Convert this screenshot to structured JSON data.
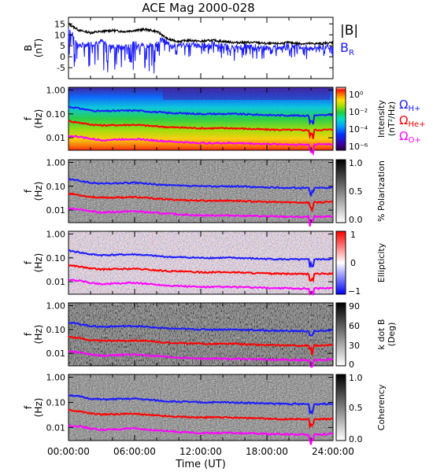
{
  "chart_data": {
    "title": "ACE Mag 2000-028",
    "xlabel": "Time (UT)",
    "x_ticks": [
      "00:00:00",
      "06:00:00",
      "12:00:00",
      "18:00:00",
      "24:00:00"
    ],
    "xlim_hours": [
      0,
      24
    ],
    "panels": [
      {
        "type": "line",
        "ylabel": "B",
        "yunits": "(nT)",
        "ylim": [
          -10,
          18
        ],
        "yticks": [
          "-5",
          "0",
          "5",
          "10",
          "15"
        ],
        "ytick_values": [
          -5,
          0,
          5,
          10,
          15
        ],
        "legend": [
          {
            "label": "|B|",
            "color": "#000000"
          },
          {
            "label": "B",
            "sub": "R",
            "color": "#1a1aff"
          }
        ],
        "series": [
          {
            "name": "|B|",
            "color": "#000000",
            "x": [
              0,
              0.5,
              1,
              2,
              3,
              4,
              5,
              6,
              7,
              8,
              8.5,
              9,
              10,
              11,
              12,
              13,
              14,
              15,
              16,
              17,
              18,
              19,
              20,
              21,
              22,
              23,
              24
            ],
            "y": [
              15,
              13.5,
              12,
              11,
              11.5,
              12,
              11.5,
              12,
              12.5,
              11.5,
              10,
              8,
              7,
              7.5,
              7,
              7.5,
              7,
              6.5,
              6.5,
              6.5,
              6,
              6,
              6.5,
              6,
              6,
              6,
              6.5
            ]
          },
          {
            "name": "B_R",
            "color": "#1a1aff",
            "x": [
              0,
              0.5,
              1,
              2,
              3,
              4,
              5,
              6,
              7,
              8,
              8.5,
              9,
              10,
              11,
              12,
              13,
              14,
              15,
              16,
              17,
              18,
              19,
              20,
              21,
              22,
              23,
              24
            ],
            "y": [
              13,
              9,
              5,
              6,
              7,
              5,
              4,
              6,
              5,
              6,
              8,
              6,
              5,
              6,
              5,
              6,
              5,
              4,
              5,
              4.5,
              4,
              4.5,
              5,
              4.5,
              4,
              4.5,
              5
            ]
          }
        ]
      },
      {
        "type": "heatmap",
        "ylabel": "f",
        "yunits": "(Hz)",
        "yticks": [
          "1.00",
          "0.10",
          "0.01"
        ],
        "colorbar": {
          "label": "Intensity",
          "units": "(nT²/Hz)",
          "scale": "log",
          "range": [
            1e-06,
            1
          ],
          "ticks": [
            "10⁰",
            "10⁻²",
            "10⁻⁴",
            "10⁻⁶"
          ],
          "colors": [
            "#2b0040",
            "#3d00a0",
            "#0030ff",
            "#00a0ff",
            "#00e0c0",
            "#20d040",
            "#a0e000",
            "#ffe000",
            "#ff8000",
            "#ff1000",
            "#ffe8e8"
          ]
        },
        "legend": [
          {
            "label": "Ω",
            "sub": "H+",
            "color": "#1a1aff"
          },
          {
            "label": "Ω",
            "sub": "He+",
            "color": "#ff0000"
          },
          {
            "label": "Ω",
            "sub": "O+",
            "color": "#ff00ff"
          }
        ]
      },
      {
        "type": "heatmap",
        "ylabel": "f",
        "yunits": "(Hz)",
        "yticks": [
          "1.00",
          "0.10",
          "0.01"
        ],
        "colorbar": {
          "label": "% Polarization",
          "range": [
            0,
            1
          ],
          "ticks": [
            "1.0",
            "0.5",
            "0.0"
          ],
          "colors": [
            "#ffffff",
            "#000000"
          ]
        }
      },
      {
        "type": "heatmap",
        "ylabel": "f",
        "yunits": "(Hz)",
        "yticks": [
          "1.00",
          "0.10",
          "0.01"
        ],
        "colorbar": {
          "label": "Ellipticity",
          "range": [
            -1,
            1
          ],
          "ticks": [
            "1",
            "0",
            "−1"
          ],
          "colors": [
            "#0000ff",
            "#ffffff",
            "#ff0000"
          ]
        }
      },
      {
        "type": "heatmap",
        "ylabel": "f",
        "yunits": "(Hz)",
        "yticks": [
          "1.00",
          "0.10",
          "0.01"
        ],
        "colorbar": {
          "label": "k dot B",
          "units": "(Deg)",
          "range": [
            0,
            90
          ],
          "ticks": [
            "90",
            "60",
            "30",
            "0"
          ],
          "colors": [
            "#ffffff",
            "#000000"
          ]
        }
      },
      {
        "type": "heatmap",
        "ylabel": "f",
        "yunits": "(Hz)",
        "yticks": [
          "1.00",
          "0.10",
          "0.01"
        ],
        "colorbar": {
          "label": "Coherency",
          "range": [
            0,
            1
          ],
          "ticks": [
            "1.0",
            "0.5",
            "0.0"
          ],
          "colors": [
            "#ffffff",
            "#000000"
          ]
        }
      }
    ],
    "gyrofrequency_lines": [
      {
        "name": "Ω H+",
        "color": "#1a1aff",
        "x": [
          0,
          1,
          2,
          3,
          6,
          9,
          12,
          15,
          18,
          21,
          22,
          24
        ],
        "f": [
          0.2,
          0.17,
          0.14,
          0.13,
          0.14,
          0.11,
          0.1,
          0.1,
          0.09,
          0.085,
          0.085,
          0.09
        ]
      },
      {
        "name": "Ω He+",
        "color": "#ff0000",
        "x": [
          0,
          1,
          2,
          3,
          6,
          9,
          12,
          15,
          18,
          21,
          22,
          24
        ],
        "f": [
          0.05,
          0.043,
          0.036,
          0.033,
          0.035,
          0.028,
          0.025,
          0.025,
          0.022,
          0.021,
          0.021,
          0.022
        ]
      },
      {
        "name": "Ω O+",
        "color": "#ff00ff",
        "x": [
          0,
          1,
          2,
          3,
          6,
          9,
          12,
          15,
          18,
          21,
          22,
          24
        ],
        "f": [
          0.012,
          0.011,
          0.009,
          0.008,
          0.009,
          0.007,
          0.006,
          0.006,
          0.0055,
          0.0052,
          0.0052,
          0.0055
        ]
      }
    ]
  }
}
